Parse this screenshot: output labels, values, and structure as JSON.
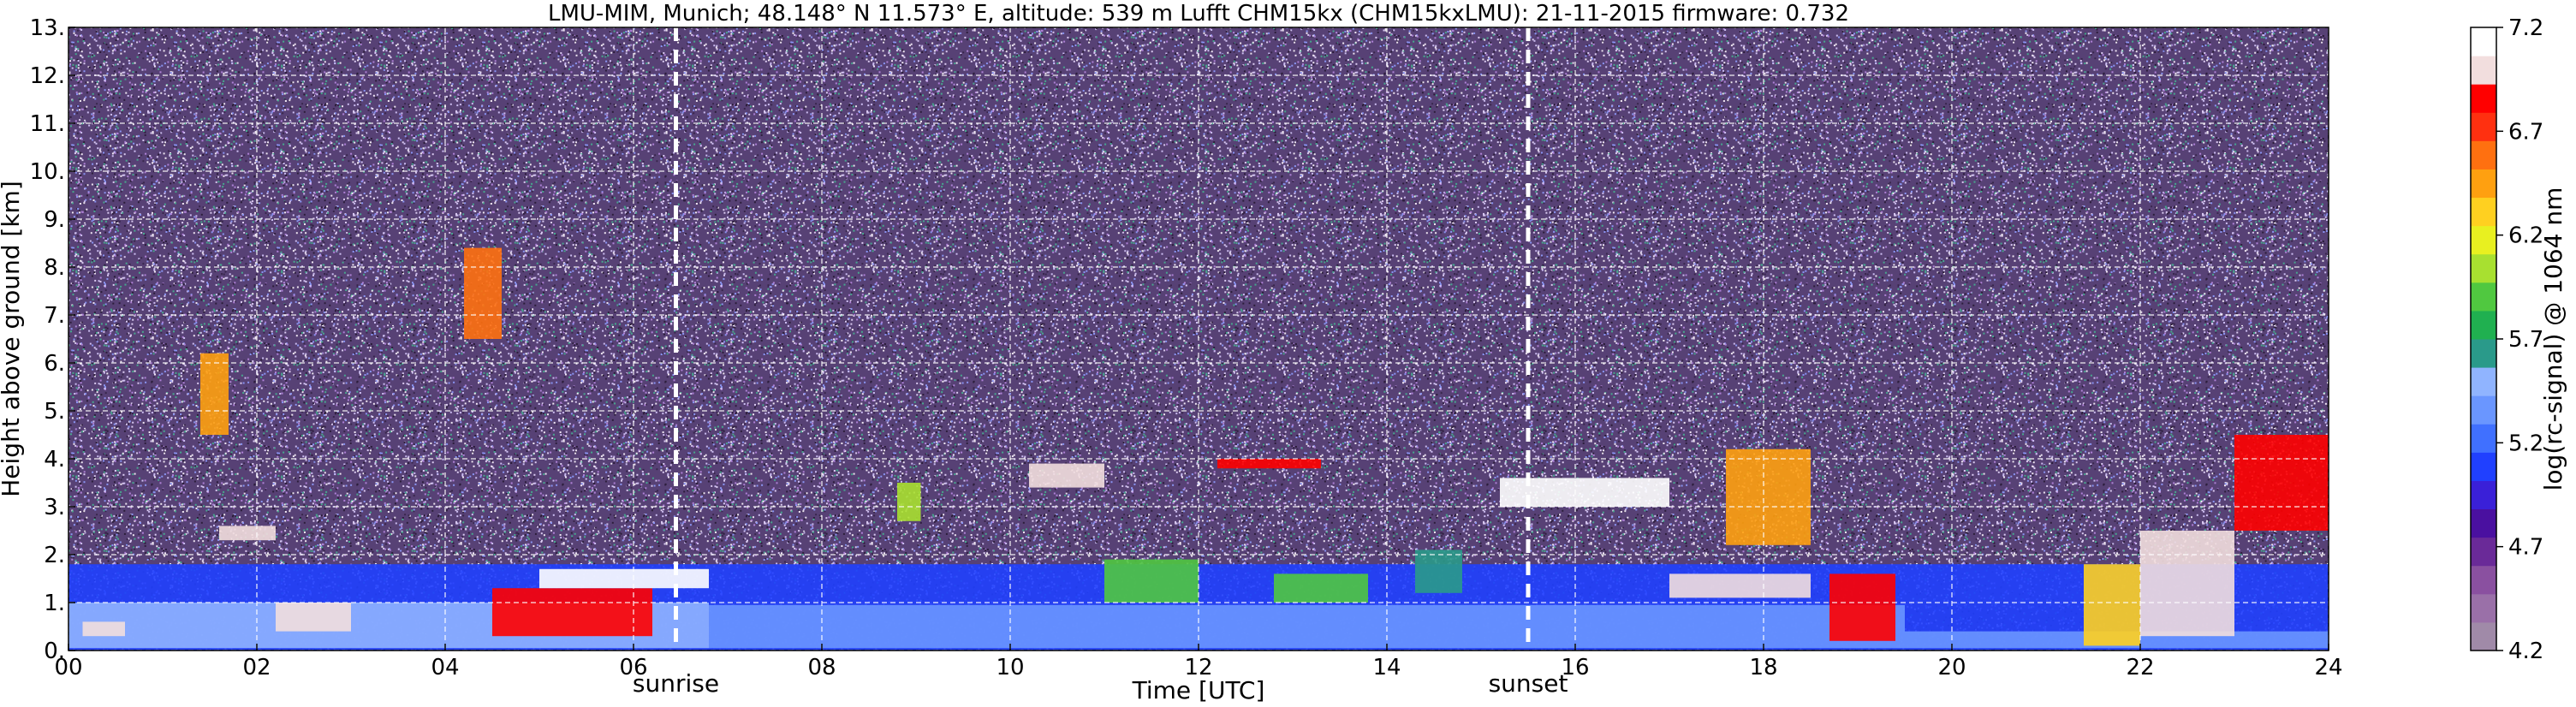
{
  "chart_data": {
    "type": "heatmap",
    "title": "LMU-MIM, Munich; 48.148° N 11.573° E, altitude: 539 m    Lufft CHM15kx (CHM15kxLMU): 21-11-2015    firmware: 0.732",
    "xlabel": "Time [UTC]",
    "ylabel": "Height above ground [km]",
    "xlim": [
      0,
      24
    ],
    "ylim": [
      0,
      13
    ],
    "xticks": [
      "00",
      "02",
      "04",
      "06",
      "08",
      "10",
      "12",
      "14",
      "16",
      "18",
      "20",
      "22",
      "24"
    ],
    "yticks": [
      "0.",
      "1.",
      "2.",
      "3.",
      "4.",
      "5.",
      "6.",
      "7.",
      "8.",
      "9.",
      "10.",
      "11.",
      "12.",
      "13."
    ],
    "grid": true,
    "annotations": [
      {
        "text": "sunrise",
        "x": 6.45
      },
      {
        "text": "sunset",
        "x": 15.5
      }
    ],
    "colorbar": {
      "label": "log(rc-signal) @ 1064 nm",
      "range": [
        4.2,
        7.2
      ],
      "ticks": [
        "4.2",
        "4.7",
        "5.2",
        "5.7",
        "6.2",
        "6.7",
        "7.2"
      ],
      "colors": [
        "#a08aa8",
        "#9a70a8",
        "#8a50a0",
        "#6a2a98",
        "#4a10a0",
        "#3a20d8",
        "#2040ff",
        "#4070ff",
        "#6a96ff",
        "#90b4ff",
        "#2a9a8a",
        "#20b050",
        "#50c840",
        "#a8e030",
        "#e8f020",
        "#ffd020",
        "#ffa010",
        "#ff7010",
        "#ff3010",
        "#ff0000",
        "#f2dede",
        "#ffffff"
      ]
    },
    "features": [
      {
        "name": "background noise",
        "t0": 0,
        "t1": 24,
        "h0": 0,
        "h1": 13,
        "value": 4.6
      },
      {
        "name": "boundary layer",
        "t0": 0,
        "t1": 24,
        "h0": 0,
        "h1": 1.8,
        "value": 5.1
      },
      {
        "name": "near-surface layer",
        "t0": 0,
        "t1": 6.8,
        "h0": 0.05,
        "h1": 1.0,
        "value": 5.5
      },
      {
        "name": "near-surface layer",
        "t0": 6.8,
        "t1": 19.5,
        "h0": 0.05,
        "h1": 0.95,
        "value": 5.3
      },
      {
        "name": "surface layer",
        "t0": 19.5,
        "t1": 24,
        "h0": 0.05,
        "h1": 0.4,
        "value": 5.4
      },
      {
        "name": "cloud",
        "t0": 0.15,
        "t1": 0.6,
        "h0": 0.3,
        "h1": 0.6,
        "value": 7.0
      },
      {
        "name": "cloud",
        "t0": 1.4,
        "t1": 1.7,
        "h0": 4.5,
        "h1": 6.2,
        "value": 6.4
      },
      {
        "name": "cloud",
        "t0": 1.6,
        "t1": 2.2,
        "h0": 2.3,
        "h1": 2.6,
        "value": 7.0
      },
      {
        "name": "cloud",
        "t0": 2.2,
        "t1": 3.0,
        "h0": 0.4,
        "h1": 1.0,
        "value": 7.0
      },
      {
        "name": "cloud",
        "t0": 4.2,
        "t1": 4.6,
        "h0": 6.5,
        "h1": 8.4,
        "value": 6.6
      },
      {
        "name": "cloud",
        "t0": 4.5,
        "t1": 6.2,
        "h0": 0.3,
        "h1": 1.3,
        "value": 6.9
      },
      {
        "name": "cloud",
        "t0": 5.0,
        "t1": 6.8,
        "h0": 1.3,
        "h1": 1.7,
        "value": 7.1
      },
      {
        "name": "cloud",
        "t0": 8.8,
        "t1": 9.05,
        "h0": 2.7,
        "h1": 3.5,
        "value": 6.1
      },
      {
        "name": "cloud",
        "t0": 10.2,
        "t1": 11.0,
        "h0": 3.4,
        "h1": 3.9,
        "value": 7.0
      },
      {
        "name": "cloud",
        "t0": 11.0,
        "t1": 12.0,
        "h0": 1.0,
        "h1": 1.9,
        "value": 5.9
      },
      {
        "name": "cloud",
        "t0": 12.2,
        "t1": 13.3,
        "h0": 3.8,
        "h1": 4.0,
        "value": 6.9
      },
      {
        "name": "cloud",
        "t0": 12.8,
        "t1": 13.8,
        "h0": 1.0,
        "h1": 1.6,
        "value": 5.9
      },
      {
        "name": "cloud",
        "t0": 14.3,
        "t1": 14.8,
        "h0": 1.2,
        "h1": 2.1,
        "value": 5.6
      },
      {
        "name": "cloud",
        "t0": 15.2,
        "t1": 17.0,
        "h0": 3.0,
        "h1": 3.6,
        "value": 7.1
      },
      {
        "name": "cloud",
        "t0": 17.0,
        "t1": 18.5,
        "h0": 1.1,
        "h1": 1.6,
        "value": 7.0
      },
      {
        "name": "cloud",
        "t0": 17.6,
        "t1": 18.5,
        "h0": 2.2,
        "h1": 4.2,
        "value": 6.5
      },
      {
        "name": "cloud",
        "t0": 18.7,
        "t1": 19.4,
        "h0": 0.2,
        "h1": 1.6,
        "value": 6.8
      },
      {
        "name": "cloud",
        "t0": 21.4,
        "t1": 22.0,
        "h0": 0.1,
        "h1": 1.8,
        "value": 6.3
      },
      {
        "name": "cloud",
        "t0": 22.0,
        "t1": 23.0,
        "h0": 0.3,
        "h1": 2.5,
        "value": 7.0
      },
      {
        "name": "cloud",
        "t0": 23.0,
        "t1": 24.0,
        "h0": 2.5,
        "h1": 4.5,
        "value": 6.9
      }
    ]
  }
}
